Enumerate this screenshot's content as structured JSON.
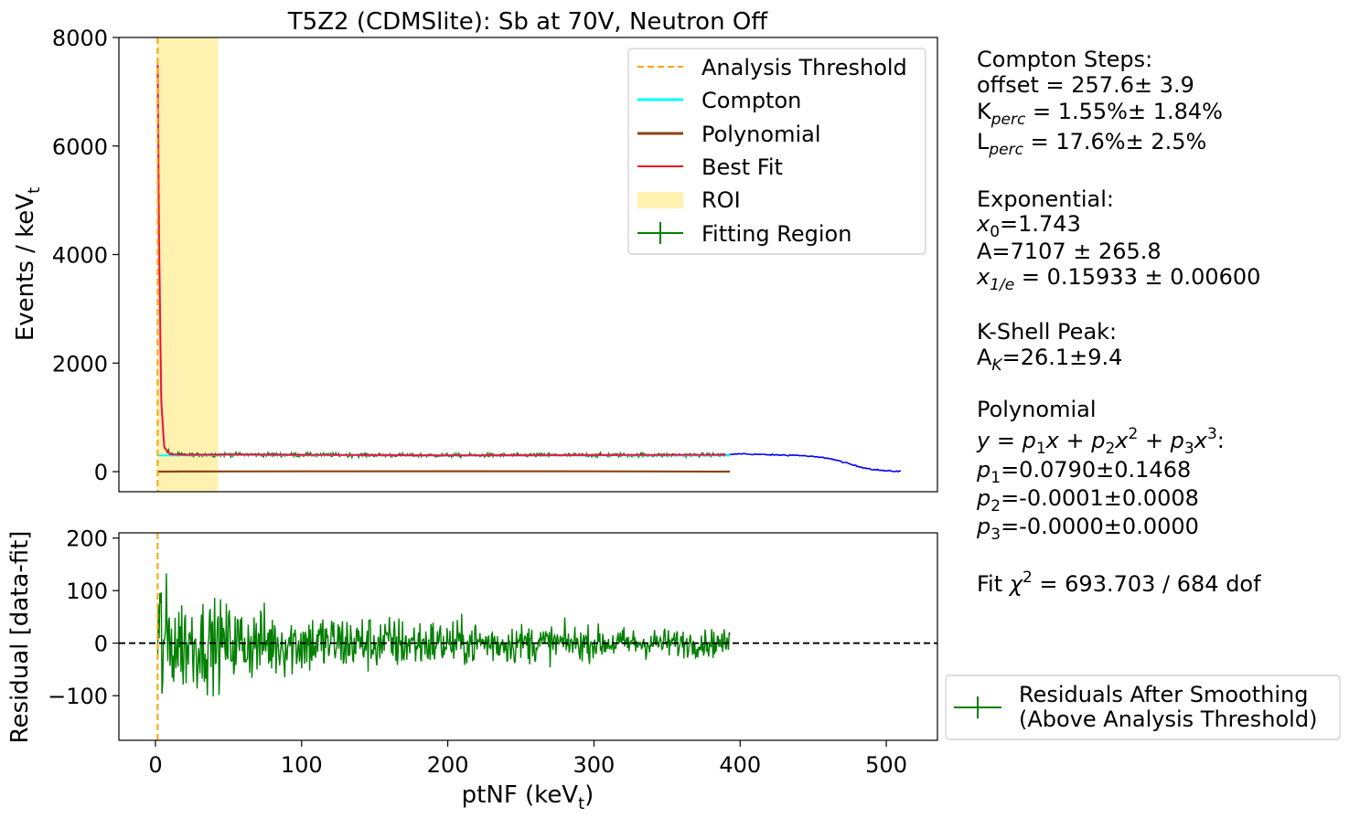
{
  "chart_data": [
    {
      "type": "line",
      "title": "T5Z2 (CDMSlite): Sb at 70V, Neutron Off",
      "ylabel": "Events / keV",
      "ylabel_sub": "t",
      "xlim": [
        -25,
        535
      ],
      "ylim": [
        -370,
        8000
      ],
      "yticks": [
        0,
        2000,
        4000,
        6000,
        8000
      ],
      "threshold_x": 1.5,
      "roi": [
        1.5,
        43
      ],
      "series": [
        {
          "name": "Analysis Threshold",
          "color": "#ffa500",
          "style": "dashed"
        },
        {
          "name": "Compton",
          "color": "#00ffff"
        },
        {
          "name": "Polynomial",
          "color": "#8b4513"
        },
        {
          "name": "Best Fit",
          "color": "#e8161a"
        },
        {
          "name": "ROI",
          "color": "#fff2b0"
        },
        {
          "name": "Fitting Region",
          "color": "#008000"
        }
      ],
      "data_spectrum": {
        "color": "#0000ff",
        "x": [
          393,
          400,
          420,
          440,
          460,
          470,
          480,
          490,
          500,
          510
        ],
        "y": [
          310,
          330,
          310,
          300,
          250,
          180,
          100,
          45,
          12,
          5
        ]
      },
      "fit_x": [
        1.5,
        2.5,
        4,
        6,
        10,
        20,
        50,
        100,
        200,
        300,
        393
      ],
      "best_fit_y": [
        7500,
        4200,
        1300,
        450,
        320,
        310,
        315,
        310,
        300,
        305,
        310
      ],
      "compton_y": [
        300,
        300,
        300,
        300,
        300,
        300,
        310,
        305,
        300,
        300,
        300
      ],
      "polynomial_y": [
        0,
        0,
        0,
        0,
        1,
        2,
        4,
        6,
        8,
        6,
        0
      ],
      "fitting_region_baseline": 305
    },
    {
      "type": "line",
      "xlabel": "ptNF (keV",
      "xlabel_sub": "t",
      "ylabel": "Residual [data-fit]",
      "xlim": [
        -25,
        535
      ],
      "ylim": [
        -185,
        210
      ],
      "xticks": [
        0,
        100,
        200,
        300,
        400,
        500
      ],
      "yticks": [
        -100,
        0,
        100,
        200
      ],
      "ytick_labels": [
        "−100",
        "0",
        "100",
        "200"
      ],
      "zero_line": 0,
      "residual_envelope": {
        "x": [
          2,
          10,
          50,
          100,
          200,
          300,
          393
        ],
        "amp": [
          190,
          110,
          85,
          70,
          50,
          35,
          28
        ]
      },
      "series": [
        {
          "name": "Residuals After Smoothing\n(Above Analysis Threshold)",
          "color": "#008000"
        }
      ]
    }
  ],
  "legend_bottom": [
    "Residuals After Smoothing",
    "(Above Analysis Threshold)"
  ],
  "annotations": {
    "compton_head": "Compton Steps:",
    "offset": "offset = 257.6± 3.9",
    "kperc_pre": "K",
    "kperc_sub": "perc",
    "kperc_post": " = 1.55%± 1.84%",
    "lperc_pre": "L",
    "lperc_sub": "perc",
    "lperc_post": " = 17.6%± 2.5%",
    "exp_head": "Exponential:",
    "x0_pre": " x",
    "x0_sub": "0",
    "x0_post": "=1.743",
    "amp": "A=7107 ± 265.8",
    "x1e_pre": "x",
    "x1e_sub": "1/e",
    "x1e_post": " = 0.15933 ± 0.00600",
    "kshell_head": "K-Shell Peak:",
    "ak_pre": "A",
    "ak_sub": "K",
    "ak_post": "=26.1±9.4",
    "poly_head": "Polynomial",
    "poly_eq": "y = p",
    "poly_eq_parts": [
      "y = p",
      "1",
      "x + p",
      "2",
      "x",
      "2",
      " + p",
      "3",
      "x",
      "3",
      ":"
    ],
    "p1_pre": "p",
    "p1_sub": "1",
    "p1_post": "=0.0790±0.1468",
    "p2_pre": "p",
    "p2_sub": "2",
    "p2_post": "=-0.0001±0.0008",
    "p3_pre": "p",
    "p3_sub": "3",
    "p3_post": "=-0.0000±0.0000",
    "chi_pre": "Fit ",
    "chi_sym": "χ",
    "chi_sup": "2",
    "chi_post": " = 693.703 / 684 dof"
  }
}
